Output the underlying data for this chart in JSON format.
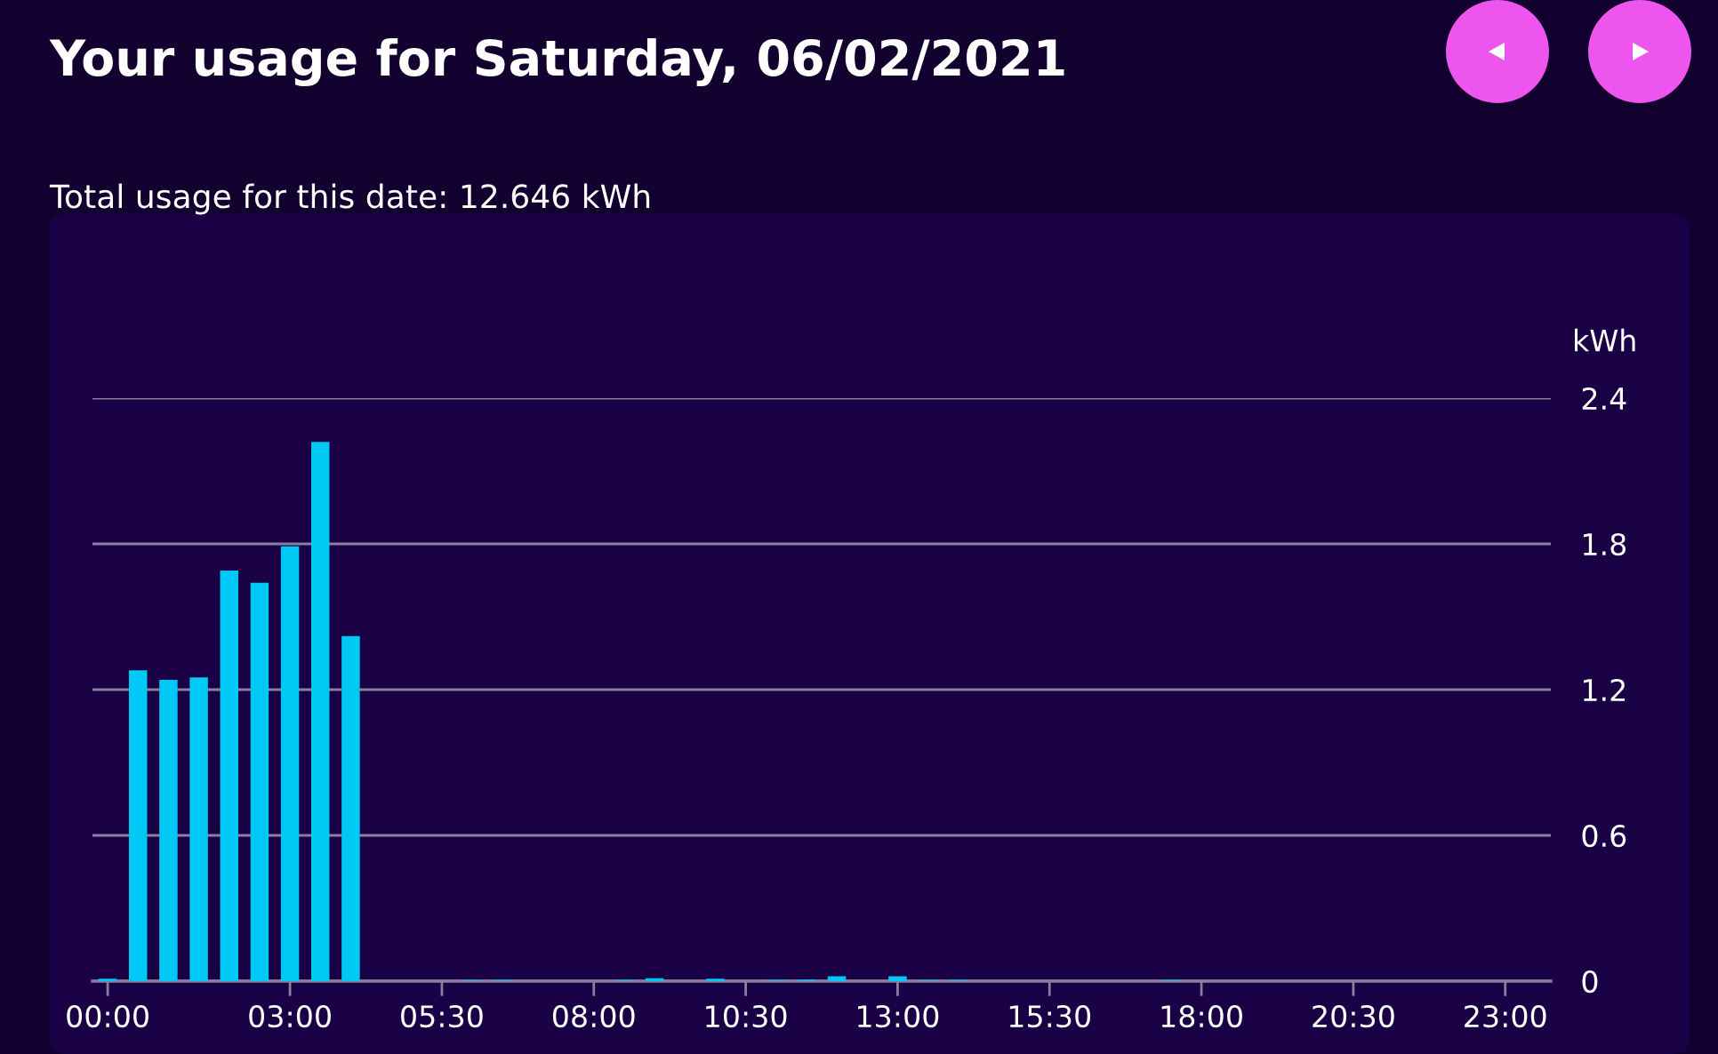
{
  "chart_data": {
    "type": "bar",
    "title": "Your usage for Saturday, 06/02/2021",
    "subtitle": "Total usage for this date: 12.646 kWh",
    "ylabel": "kWh",
    "categories": [
      "00:00",
      null,
      null,
      null,
      null,
      null,
      "03:00",
      null,
      null,
      null,
      null,
      "05:30",
      null,
      null,
      null,
      null,
      "08:00",
      null,
      null,
      null,
      null,
      "10:30",
      null,
      null,
      null,
      null,
      "13:00",
      null,
      null,
      null,
      null,
      "15:30",
      null,
      null,
      null,
      null,
      "18:00",
      null,
      null,
      null,
      null,
      "20:30",
      null,
      null,
      null,
      null,
      "23:00",
      null
    ],
    "values": [
      0.01,
      1.28,
      1.24,
      1.25,
      1.69,
      1.64,
      1.79,
      2.22,
      1.42,
      0,
      0,
      0,
      0.003,
      0.003,
      0,
      0,
      0,
      0.003,
      0.012,
      0,
      0.01,
      0,
      0.003,
      0.005,
      0.02,
      0,
      0.02,
      0.003,
      0.003,
      0,
      0,
      0,
      0,
      0,
      0,
      0.003,
      0,
      0,
      0,
      0,
      0,
      0,
      0,
      0,
      0,
      0,
      0,
      0
    ],
    "color": "#00c8f5",
    "ylim": [
      0,
      2.4
    ],
    "yticks": [
      0,
      0.6,
      1.2,
      1.8,
      2.4
    ],
    "grid": "y"
  }
}
